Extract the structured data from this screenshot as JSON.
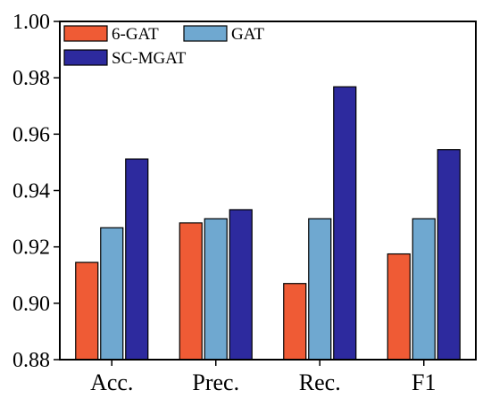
{
  "chart_data": {
    "type": "bar",
    "categories": [
      "Acc.",
      "Prec.",
      "Rec.",
      "F1"
    ],
    "series": [
      {
        "name": "6-GAT",
        "color": "#ef5b35",
        "values": [
          0.9145,
          0.9285,
          0.907,
          0.9175
        ]
      },
      {
        "name": "GAT",
        "color": "#6fa8d0",
        "values": [
          0.9268,
          0.93,
          0.93,
          0.93
        ]
      },
      {
        "name": "SC-MGAT",
        "color": "#2d2a9e",
        "values": [
          0.9512,
          0.9332,
          0.9768,
          0.9545
        ]
      }
    ],
    "ylim": [
      0.88,
      1.0
    ],
    "yticks": [
      "0.88",
      "0.90",
      "0.92",
      "0.94",
      "0.96",
      "0.98",
      "1.00"
    ],
    "ytick_values": [
      0.88,
      0.9,
      0.92,
      0.94,
      0.96,
      0.98,
      1.0
    ],
    "title": "",
    "xlabel": "",
    "ylabel": "",
    "grid": false,
    "legend_position": "top-left"
  }
}
